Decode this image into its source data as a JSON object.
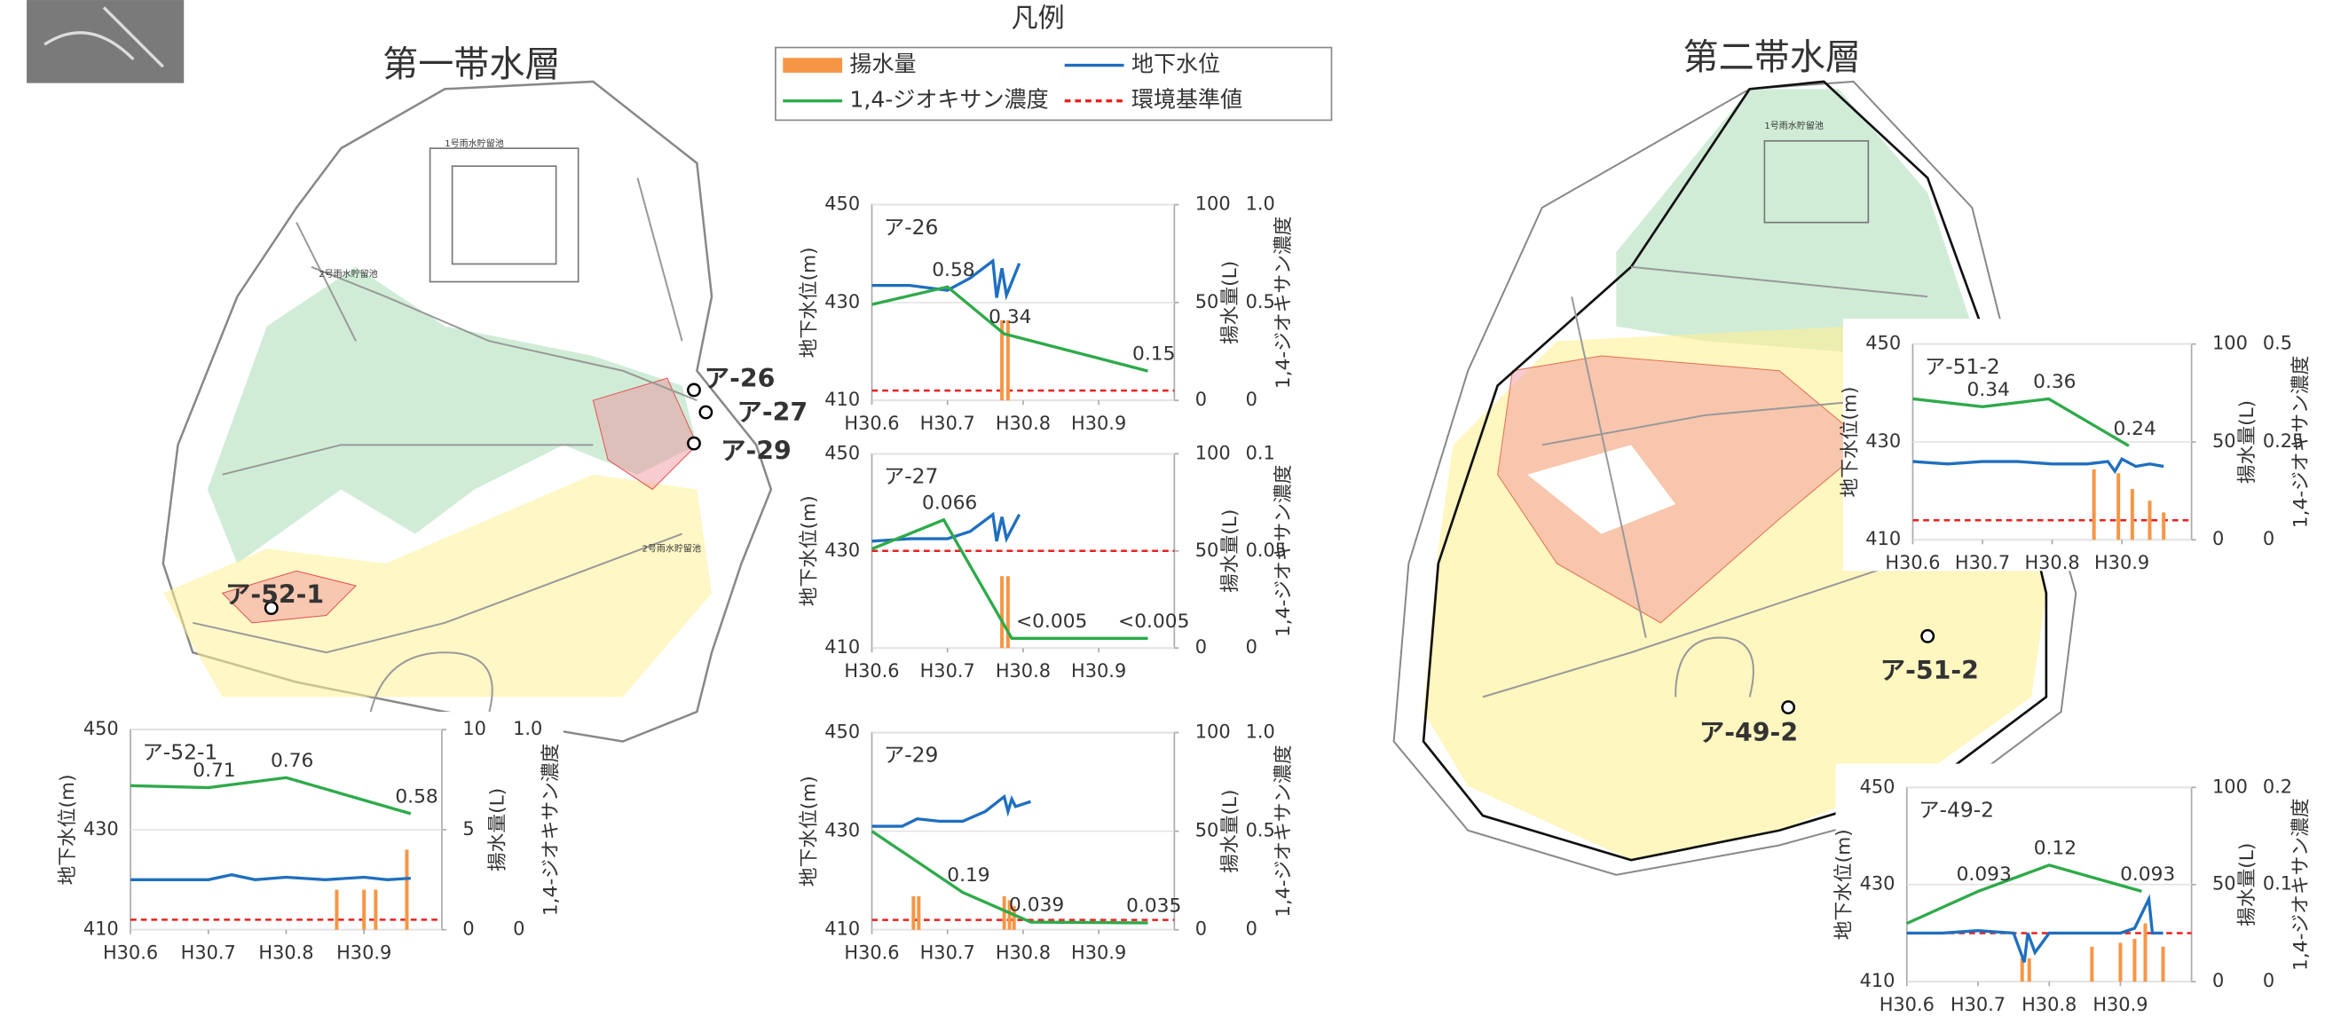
{
  "map_titles": [
    "第一帯水層",
    "第二帯水層"
  ],
  "map_labels": [
    "1号雨水貯留池",
    "2号雨水貯留池",
    "2号雨水貯留池",
    "1号雨水貯留池"
  ],
  "wells": [
    "ア-26",
    "ア-27",
    "ア-29",
    "ア-52-1",
    "ア-51-2",
    "ア-49-2"
  ],
  "legend": {
    "title": "凡例",
    "items": [
      {
        "name": "揚水量",
        "color": "#f79646",
        "style": "bar"
      },
      {
        "name": "地下水位",
        "color": "#1f6fbf",
        "style": "line"
      },
      {
        "name": "1,4-ジオキサン濃度",
        "color": "#2eaa4a",
        "style": "line"
      },
      {
        "name": "環境基準値",
        "color": "#e8201f",
        "style": "dashed"
      }
    ]
  },
  "chart_data": [
    {
      "type": "line",
      "title": "ア-26",
      "ylabel": "地下水位(m)",
      "y2label": "揚水量(L)",
      "y3label": "1,4-ジオキサン濃度",
      "xlim": [
        6,
        10
      ],
      "xticks": [
        {
          "value": 6,
          "label": "H30.6"
        },
        {
          "value": 7,
          "label": "H30.7"
        },
        {
          "value": 8,
          "label": "H30.8"
        },
        {
          "value": 9,
          "label": "H30.9"
        }
      ],
      "ylim": [
        410,
        450
      ],
      "yticks": [
        410,
        430,
        450
      ],
      "y2lim": [
        0,
        100
      ],
      "y2ticks": [
        0,
        50,
        100
      ],
      "y3lim": [
        0,
        1
      ],
      "y3ticks": [
        0,
        0.5,
        {
          "value": 1,
          "label": "1.0"
        }
      ],
      "grid": true,
      "series": [
        {
          "type": "bar",
          "axis": "y2",
          "color": "#f79646",
          "x": [
            7.72,
            7.8
          ],
          "values": [
            41,
            41
          ]
        },
        {
          "type": "line",
          "axis": "y",
          "color": "#1f6fbf",
          "x": [
            6,
            6.5,
            7,
            7.3,
            7.6,
            7.65,
            7.72,
            7.78,
            7.95
          ],
          "values": [
            433.5,
            433.5,
            432.5,
            435,
            438.5,
            431,
            437,
            431.5,
            438
          ]
        },
        {
          "type": "line",
          "axis": "y3",
          "color": "#2eaa4a",
          "x": [
            6,
            7,
            7.75,
            9.65
          ],
          "values": [
            0.49,
            0.58,
            0.34,
            0.15
          ],
          "value_labels": [
            null,
            "0.58",
            "0.34",
            "0.15"
          ]
        }
      ],
      "standard": {
        "value": 0.05,
        "axis": "y3",
        "color": "#e8201f"
      }
    },
    {
      "type": "line",
      "title": "ア-27",
      "ylabel": "地下水位(m)",
      "y2label": "揚水量(L)",
      "y3label": "1,4-ジオキサン濃度",
      "xlim": [
        6,
        10
      ],
      "xticks": [
        {
          "value": 6,
          "label": "H30.6"
        },
        {
          "value": 7,
          "label": "H30.7"
        },
        {
          "value": 8,
          "label": "H30.8"
        },
        {
          "value": 9,
          "label": "H30.9"
        }
      ],
      "ylim": [
        410,
        450
      ],
      "yticks": [
        410,
        430,
        450
      ],
      "y2lim": [
        0,
        100
      ],
      "y2ticks": [
        0,
        50,
        100
      ],
      "y3lim": [
        0,
        0.1
      ],
      "y3ticks": [
        0,
        0.05,
        0.1
      ],
      "grid": true,
      "series": [
        {
          "type": "bar",
          "axis": "y2",
          "color": "#f79646",
          "x": [
            7.72,
            7.8
          ],
          "values": [
            37,
            37
          ]
        },
        {
          "type": "line",
          "axis": "y",
          "color": "#1f6fbf",
          "x": [
            6,
            6.5,
            7,
            7.3,
            7.6,
            7.65,
            7.72,
            7.78,
            7.95
          ],
          "values": [
            432,
            432.5,
            432.5,
            434,
            437.5,
            432,
            437,
            432.5,
            437.5
          ]
        },
        {
          "type": "line",
          "axis": "y3",
          "color": "#2eaa4a",
          "x": [
            6,
            6.95,
            7.85,
            8.3,
            9.65
          ],
          "values": [
            0.051,
            0.066,
            0.005,
            0.005,
            0.005
          ],
          "value_labels": [
            null,
            "0.066",
            null,
            "<0.005",
            "<0.005"
          ]
        }
      ],
      "standard": {
        "value": 0.05,
        "axis": "y3",
        "color": "#e8201f"
      }
    },
    {
      "type": "line",
      "title": "ア-29",
      "ylabel": "地下水位(m)",
      "y2label": "揚水量(L)",
      "y3label": "1,4-ジオキサン濃度",
      "xlim": [
        6,
        10
      ],
      "xticks": [
        {
          "value": 6,
          "label": "H30.6"
        },
        {
          "value": 7,
          "label": "H30.7"
        },
        {
          "value": 8,
          "label": "H30.8"
        },
        {
          "value": 9,
          "label": "H30.9"
        }
      ],
      "ylim": [
        410,
        450
      ],
      "yticks": [
        410,
        430,
        450
      ],
      "y2lim": [
        0,
        100
      ],
      "y2ticks": [
        0,
        50,
        100
      ],
      "y3lim": [
        0,
        1
      ],
      "y3ticks": [
        0,
        0.5,
        {
          "value": 1,
          "label": "1.0"
        }
      ],
      "grid": true,
      "series": [
        {
          "type": "bar",
          "axis": "y2",
          "color": "#f79646",
          "x": [
            6.55,
            6.62,
            7.75,
            7.82,
            7.88
          ],
          "values": [
            17,
            17,
            17,
            15,
            12
          ]
        },
        {
          "type": "line",
          "axis": "y",
          "color": "#1f6fbf",
          "x": [
            6,
            6.4,
            6.6,
            6.9,
            7.2,
            7.5,
            7.75,
            7.8,
            7.85,
            7.9,
            8.1
          ],
          "values": [
            431,
            431,
            432.5,
            432,
            432,
            434,
            437,
            434,
            436.5,
            435,
            436
          ]
        },
        {
          "type": "line",
          "axis": "y3",
          "color": "#2eaa4a",
          "x": [
            6,
            7.2,
            8.1,
            9.65
          ],
          "values": [
            0.5,
            0.19,
            0.039,
            0.035
          ],
          "value_labels": [
            null,
            "0.19",
            "0.039",
            "0.035"
          ]
        }
      ],
      "standard": {
        "value": 0.05,
        "axis": "y3",
        "color": "#e8201f"
      }
    },
    {
      "type": "line",
      "title": "ア-52-1",
      "ylabel": "地下水位(m)",
      "y2label": "揚水量(L)",
      "y3label": "1,4-ジオキサン濃度",
      "xlim": [
        6,
        10
      ],
      "xticks": [
        {
          "value": 6,
          "label": "H30.6"
        },
        {
          "value": 7,
          "label": "H30.7"
        },
        {
          "value": 8,
          "label": "H30.8"
        },
        {
          "value": 9,
          "label": "H30.9"
        }
      ],
      "ylim": [
        410,
        450
      ],
      "yticks": [
        410,
        430,
        450
      ],
      "y2lim": [
        0,
        10
      ],
      "y2ticks": [
        0,
        5,
        10
      ],
      "y3lim": [
        0,
        1
      ],
      "y3ticks": [
        0,
        {
          "value": 1,
          "label": "1.0"
        }
      ],
      "grid": true,
      "series": [
        {
          "type": "bar",
          "axis": "y2",
          "color": "#f79646",
          "x": [
            8.65,
            9.0,
            9.15,
            9.55
          ],
          "values": [
            2,
            2,
            2,
            4
          ]
        },
        {
          "type": "line",
          "axis": "y",
          "color": "#1f6fbf",
          "x": [
            6,
            6.5,
            7,
            7.3,
            7.6,
            8,
            8.5,
            9,
            9.3,
            9.6
          ],
          "values": [
            420,
            420,
            420,
            421,
            420,
            420.5,
            420,
            420.5,
            420,
            420.3
          ]
        },
        {
          "type": "line",
          "axis": "y3",
          "color": "#2eaa4a",
          "x": [
            6,
            7,
            8,
            9.6
          ],
          "values": [
            0.72,
            0.71,
            0.76,
            0.58
          ],
          "value_labels": [
            null,
            "0.71",
            "0.76",
            "0.58"
          ]
        }
      ],
      "standard": {
        "value": 0.05,
        "axis": "y3",
        "color": "#e8201f"
      }
    },
    {
      "type": "line",
      "title": "ア-51-2",
      "ylabel": "地下水位(m)",
      "y2label": "揚水量(L)",
      "y3label": "1,4-ジオキサン濃度",
      "xlim": [
        6,
        10
      ],
      "xticks": [
        {
          "value": 6,
          "label": "H30.6"
        },
        {
          "value": 7,
          "label": "H30.7"
        },
        {
          "value": 8,
          "label": "H30.8"
        },
        {
          "value": 9,
          "label": "H30.9"
        }
      ],
      "ylim": [
        410,
        450
      ],
      "yticks": [
        410,
        430,
        450
      ],
      "y2lim": [
        0,
        100
      ],
      "y2ticks": [
        0,
        50,
        100
      ],
      "y3lim": [
        0,
        0.5
      ],
      "y3ticks": [
        0,
        0.25,
        0.5
      ],
      "grid": true,
      "series": [
        {
          "type": "bar",
          "axis": "y2",
          "color": "#f79646",
          "x": [
            8.6,
            8.95,
            9.15,
            9.4,
            9.6
          ],
          "values": [
            36,
            34,
            26,
            20,
            14
          ]
        },
        {
          "type": "line",
          "axis": "y",
          "color": "#1f6fbf",
          "x": [
            6,
            6.5,
            7,
            7.5,
            8,
            8.5,
            8.8,
            8.9,
            9.0,
            9.2,
            9.4,
            9.6
          ],
          "values": [
            426,
            425.5,
            426,
            426,
            425.5,
            425.5,
            426,
            424,
            426.5,
            425,
            425.5,
            425
          ]
        },
        {
          "type": "line",
          "axis": "y3",
          "color": "#2eaa4a",
          "x": [
            6,
            7,
            7.95,
            9.1
          ],
          "values": [
            0.36,
            0.34,
            0.36,
            0.24
          ],
          "value_labels": [
            null,
            "0.34",
            "0.36",
            "0.24"
          ]
        }
      ],
      "standard": {
        "value": 0.05,
        "axis": "y3",
        "color": "#e8201f"
      }
    },
    {
      "type": "line",
      "title": "ア-49-2",
      "ylabel": "地下水位(m)",
      "y2label": "揚水量(L)",
      "y3label": "1,4-ジオキサン濃度",
      "xlim": [
        6,
        10
      ],
      "xticks": [
        {
          "value": 6,
          "label": "H30.6"
        },
        {
          "value": 7,
          "label": "H30.7"
        },
        {
          "value": 8,
          "label": "H30.8"
        },
        {
          "value": 9,
          "label": "H30.9"
        }
      ],
      "ylim": [
        410,
        450
      ],
      "yticks": [
        410,
        430,
        450
      ],
      "y2lim": [
        0,
        100
      ],
      "y2ticks": [
        0,
        50,
        100
      ],
      "y3lim": [
        0,
        0.2
      ],
      "y3ticks": [
        0,
        0.1,
        0.2
      ],
      "grid": true,
      "series": [
        {
          "type": "bar",
          "axis": "y2",
          "color": "#f79646",
          "x": [
            7.62,
            7.72,
            8.6,
            9.0,
            9.2,
            9.35,
            9.6
          ],
          "values": [
            12,
            12,
            18,
            20,
            22,
            30,
            18
          ]
        },
        {
          "type": "line",
          "axis": "y",
          "color": "#1f6fbf",
          "x": [
            6,
            6.5,
            7,
            7.5,
            7.65,
            7.7,
            7.8,
            8.0,
            8.5,
            9.0,
            9.2,
            9.4,
            9.45,
            9.6
          ],
          "values": [
            420,
            420,
            420.5,
            420,
            414,
            420,
            416,
            420,
            420,
            420,
            421,
            427,
            420,
            420
          ]
        },
        {
          "type": "line",
          "axis": "y3",
          "color": "#2eaa4a",
          "x": [
            6,
            7,
            8,
            9.3
          ],
          "values": [
            0.06,
            0.093,
            0.12,
            0.093
          ],
          "value_labels": [
            null,
            "0.093",
            "0.12",
            "0.093"
          ]
        }
      ],
      "standard": {
        "value": 0.05,
        "axis": "y3",
        "color": "#e8201f"
      }
    }
  ]
}
